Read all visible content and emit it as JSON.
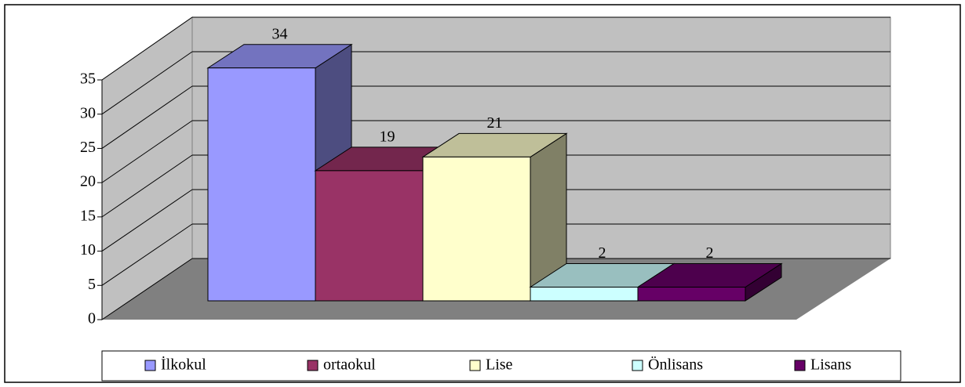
{
  "chart_data": {
    "type": "bar3d",
    "categories": [
      "İlkokul",
      "ortaokul",
      "Lise",
      "Önlisans",
      "Lisans"
    ],
    "values": [
      34,
      19,
      21,
      2,
      2
    ],
    "colors": [
      "#9999ff",
      "#993366",
      "#ffffcc",
      "#ccffff",
      "#660066"
    ],
    "ylim": [
      0,
      35
    ],
    "yticks": [
      0,
      5,
      10,
      15,
      20,
      25,
      30,
      35
    ],
    "grid": true,
    "legend": "bottom"
  }
}
